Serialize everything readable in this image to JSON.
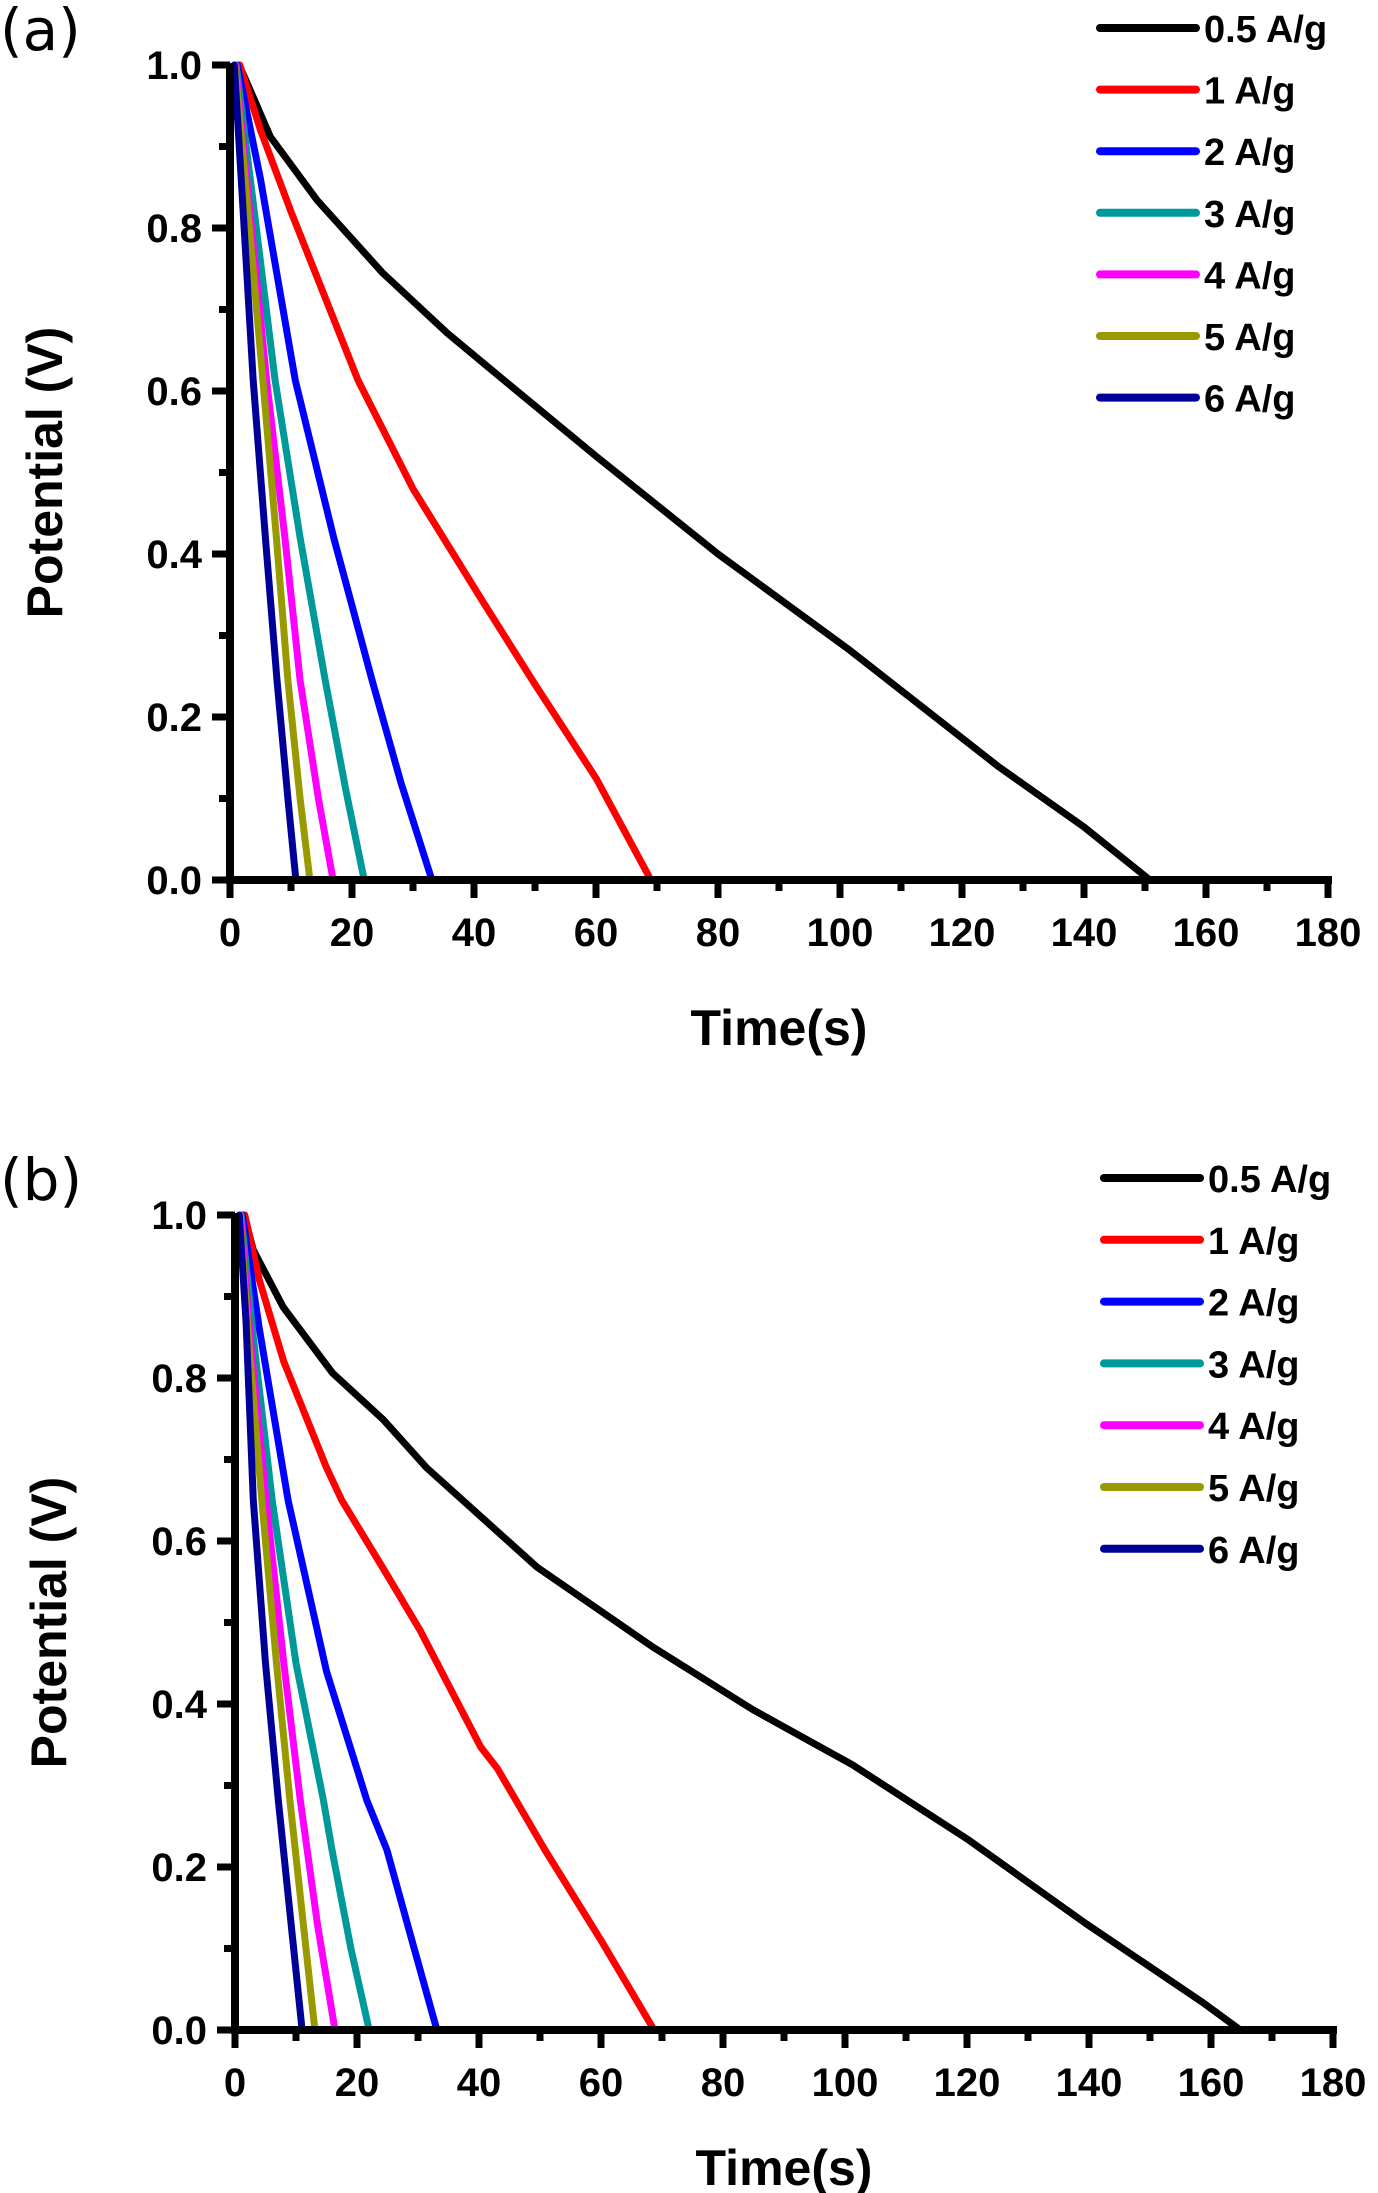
{
  "chart_data": [
    {
      "type": "line",
      "panel_label": "(a)",
      "title": "",
      "xlabel": "Time(s)",
      "ylabel": "Potential (V)",
      "xlim": [
        0,
        180
      ],
      "ylim": [
        0,
        1.0
      ],
      "xticks": [
        "0",
        "20",
        "40",
        "60",
        "80",
        "100",
        "120",
        "140",
        "160",
        "180"
      ],
      "yticks": [
        "0.0",
        "0.2",
        "0.4",
        "0.6",
        "0.8",
        "1.0"
      ],
      "grid": false,
      "legend_position": "top-right",
      "series": [
        {
          "name": "0.5 A/g",
          "color": "#000000",
          "x": [
            1.4,
            2.1,
            6.6,
            14.3,
            25,
            35.6,
            46.4,
            60,
            80,
            101.6,
            126,
            140,
            150.8
          ],
          "y": [
            1.0,
            0.99,
            0.912,
            0.834,
            0.745,
            0.671,
            0.604,
            0.52,
            0.4,
            0.282,
            0.139,
            0.065,
            0.0
          ]
        },
        {
          "name": "1 A/g",
          "color": "#ff0000",
          "x": [
            1.6,
            5,
            10,
            21,
            30,
            41,
            50,
            60,
            69
          ],
          "y": [
            1.0,
            0.92,
            0.82,
            0.613,
            0.48,
            0.347,
            0.24,
            0.125,
            0.0
          ]
        },
        {
          "name": "2 A/g",
          "color": "#0000ff",
          "x": [
            1.2,
            5,
            10.7,
            17,
            23.3,
            28,
            33.1
          ],
          "y": [
            1.0,
            0.86,
            0.613,
            0.42,
            0.245,
            0.12,
            0.0
          ]
        },
        {
          "name": "3 A/g",
          "color": "#009999",
          "x": [
            1.0,
            3.5,
            7.4,
            11.5,
            15.6,
            19,
            22.0
          ],
          "y": [
            1.0,
            0.85,
            0.613,
            0.42,
            0.245,
            0.11,
            0.0
          ]
        },
        {
          "name": "4 A/g",
          "color": "#ff00ff",
          "x": [
            0.9,
            3,
            6,
            9,
            11.5,
            14.5,
            16.9
          ],
          "y": [
            1.0,
            0.84,
            0.613,
            0.42,
            0.245,
            0.1,
            0.0
          ]
        },
        {
          "name": "5 A/g",
          "color": "#999900",
          "x": [
            0.8,
            2.7,
            5.4,
            7.6,
            9.5,
            11.5,
            13.1
          ],
          "y": [
            1.0,
            0.84,
            0.613,
            0.42,
            0.245,
            0.1,
            0.0
          ]
        },
        {
          "name": "6 A/g",
          "color": "#000099",
          "x": [
            0.7,
            2,
            3.8,
            5.8,
            7.7,
            9.5,
            10.8
          ],
          "y": [
            1.0,
            0.84,
            0.613,
            0.42,
            0.245,
            0.1,
            0.0
          ]
        }
      ]
    },
    {
      "type": "line",
      "panel_label": "(b)",
      "title": "",
      "xlabel": "Time(s)",
      "ylabel": "Potential (V)",
      "xlim": [
        0,
        180
      ],
      "ylim": [
        0,
        1.0
      ],
      "xticks": [
        "0",
        "20",
        "40",
        "60",
        "80",
        "100",
        "120",
        "140",
        "160",
        "180"
      ],
      "yticks": [
        "0.0",
        "0.2",
        "0.4",
        "0.6",
        "0.8",
        "1.0"
      ],
      "grid": false,
      "legend_position": "top-right",
      "series": [
        {
          "name": "0.5 A/g",
          "color": "#000000",
          "x": [
            1.5,
            3,
            7.9,
            16,
            24.3,
            31.4,
            49.5,
            68.5,
            84.9,
            101.3,
            120.3,
            139.4,
            158.6,
            164.8
          ],
          "y": [
            1.0,
            0.957,
            0.887,
            0.806,
            0.749,
            0.69,
            0.568,
            0.47,
            0.393,
            0.325,
            0.233,
            0.131,
            0.034,
            0.0
          ]
        },
        {
          "name": "1 A/g",
          "color": "#ff0000",
          "x": [
            1.6,
            4,
            8,
            15,
            17.5,
            24,
            30.3,
            40.3,
            43,
            50.8,
            60,
            68.7
          ],
          "y": [
            1.0,
            0.92,
            0.82,
            0.69,
            0.65,
            0.57,
            0.491,
            0.347,
            0.321,
            0.221,
            0.11,
            0.0
          ]
        },
        {
          "name": "2 A/g",
          "color": "#0000ff",
          "x": [
            1.2,
            4,
            8.7,
            15,
            21.6,
            24.9,
            29,
            33.1
          ],
          "y": [
            1.0,
            0.86,
            0.65,
            0.44,
            0.282,
            0.221,
            0.11,
            0.0
          ]
        },
        {
          "name": "3 A/g",
          "color": "#009999",
          "x": [
            1.0,
            3,
            6.1,
            10,
            14.5,
            15.9,
            19,
            22.0
          ],
          "y": [
            1.0,
            0.85,
            0.65,
            0.45,
            0.282,
            0.221,
            0.1,
            0.0
          ]
        },
        {
          "name": "4 A/g",
          "color": "#ff00ff",
          "x": [
            0.9,
            2.6,
            5.1,
            8,
            10.7,
            13.5,
            16.4
          ],
          "y": [
            1.0,
            0.84,
            0.65,
            0.45,
            0.282,
            0.13,
            0.0
          ]
        },
        {
          "name": "5 A/g",
          "color": "#999900",
          "x": [
            0.8,
            2.3,
            4.4,
            6.8,
            9.0,
            11.2,
            13.1
          ],
          "y": [
            1.0,
            0.84,
            0.65,
            0.45,
            0.282,
            0.13,
            0.0
          ]
        },
        {
          "name": "6 A/g",
          "color": "#000099",
          "x": [
            0.7,
            1.8,
            3.0,
            5.0,
            7.1,
            9.2,
            11.0
          ],
          "y": [
            1.0,
            0.87,
            0.65,
            0.45,
            0.282,
            0.13,
            0.0
          ]
        }
      ]
    }
  ]
}
